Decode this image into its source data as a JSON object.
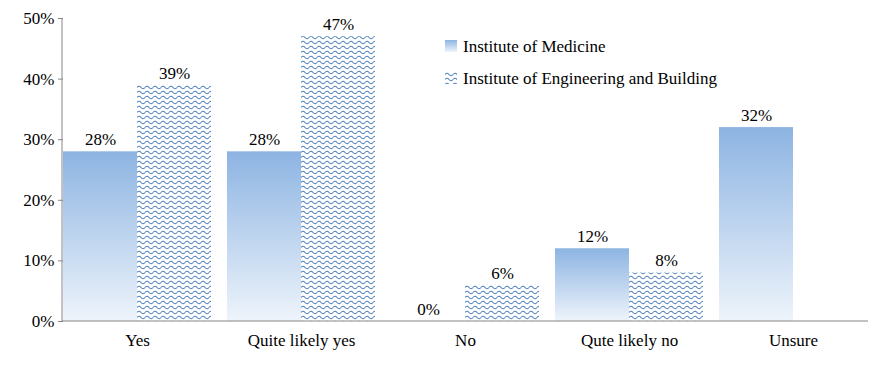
{
  "chart_data": {
    "type": "bar",
    "categories": [
      "Yes",
      "Quite likely yes",
      "No",
      "Qute likely no",
      "Unsure"
    ],
    "series": [
      {
        "name": "Institute of Medicine",
        "color": "#8db4e2",
        "values": [
          28,
          28,
          0,
          12,
          32
        ],
        "value_labels": [
          "28%",
          "28%",
          "0%",
          "12%",
          "32%"
        ]
      },
      {
        "name": "Institute of Engineering and Building",
        "color": "#4f81bd",
        "values": [
          39,
          47,
          6,
          8,
          null
        ],
        "value_labels": [
          "39%",
          "47%",
          "6%",
          "8%",
          null
        ]
      }
    ],
    "ylim": [
      0,
      50
    ],
    "yticks": [
      {
        "value": 0,
        "label": "0%"
      },
      {
        "value": 10,
        "label": "10%"
      },
      {
        "value": 20,
        "label": "20%"
      },
      {
        "value": 30,
        "label": "30%"
      },
      {
        "value": 40,
        "label": "40%"
      },
      {
        "value": 50,
        "label": "50%"
      }
    ],
    "grid": false,
    "legend": "top",
    "data_labels": true
  }
}
